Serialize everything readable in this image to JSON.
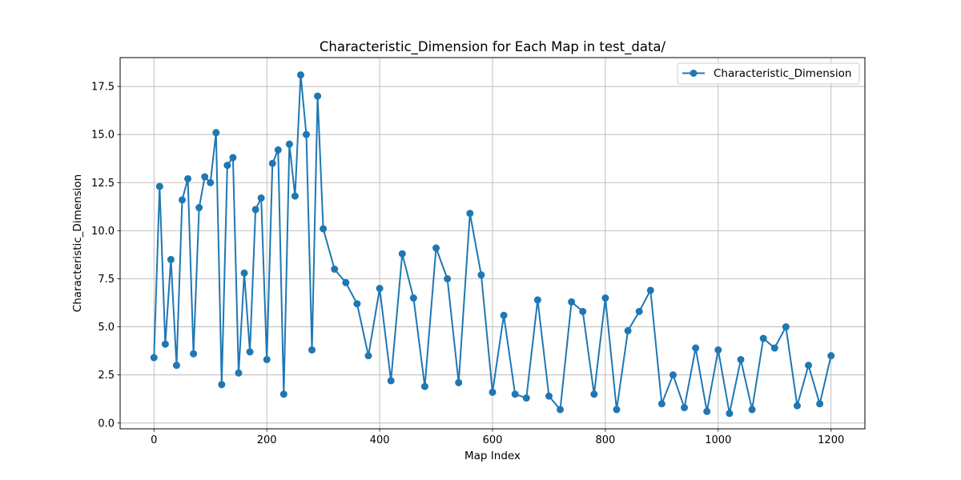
{
  "chart_data": {
    "type": "line",
    "title": "Characteristic_Dimension for Each Map in test_data/",
    "xlabel": "Map Index",
    "ylabel": "Characteristic_Dimension",
    "xlim": [
      -60,
      1260
    ],
    "ylim": [
      -0.3,
      19.0
    ],
    "xticks": [
      0,
      200,
      400,
      600,
      800,
      1000,
      1200
    ],
    "xtick_labels": [
      "0",
      "200",
      "400",
      "600",
      "800",
      "1000",
      "1200"
    ],
    "yticks": [
      0,
      2.5,
      5,
      7.5,
      10,
      12.5,
      15,
      17.5
    ],
    "ytick_labels": [
      "0.0",
      "2.5",
      "5.0",
      "7.5",
      "10.0",
      "12.5",
      "15.0",
      "17.5"
    ],
    "grid": true,
    "legend_position": "top-right",
    "color": "#1f77b4",
    "marker": "circle",
    "series": [
      {
        "name": "Characteristic_Dimension",
        "x": [
          0,
          10,
          20,
          30,
          40,
          50,
          60,
          70,
          80,
          90,
          100,
          110,
          120,
          130,
          140,
          150,
          160,
          170,
          180,
          190,
          200,
          210,
          220,
          230,
          240,
          250,
          260,
          270,
          280,
          290,
          300,
          320,
          340,
          360,
          380,
          400,
          420,
          440,
          460,
          480,
          500,
          520,
          540,
          560,
          580,
          600,
          620,
          640,
          660,
          680,
          700,
          720,
          740,
          760,
          780,
          800,
          820,
          840,
          860,
          880,
          900,
          920,
          940,
          960,
          980,
          1000,
          1020,
          1040,
          1060,
          1080,
          1100,
          1120,
          1140,
          1160,
          1180,
          1200
        ],
        "values": [
          3.4,
          12.3,
          4.1,
          8.5,
          3.0,
          11.6,
          12.7,
          3.6,
          11.2,
          12.8,
          12.5,
          15.1,
          2.0,
          13.4,
          13.8,
          2.6,
          7.8,
          3.7,
          11.1,
          11.7,
          3.3,
          13.5,
          14.2,
          1.5,
          14.5,
          11.8,
          18.1,
          15.0,
          3.8,
          17.0,
          10.1,
          8.0,
          7.3,
          6.2,
          3.5,
          7.0,
          2.2,
          8.8,
          6.5,
          1.9,
          9.1,
          7.5,
          2.1,
          10.9,
          7.7,
          1.6,
          5.6,
          1.5,
          1.3,
          6.4,
          1.4,
          0.7,
          6.3,
          5.8,
          1.5,
          6.5,
          0.7,
          4.8,
          5.8,
          6.9,
          1.0,
          2.5,
          0.8,
          3.9,
          0.6,
          3.8,
          0.5,
          3.3,
          0.7,
          4.4,
          3.9,
          5.0,
          0.9,
          3.0,
          1.0,
          3.5
        ]
      }
    ]
  }
}
